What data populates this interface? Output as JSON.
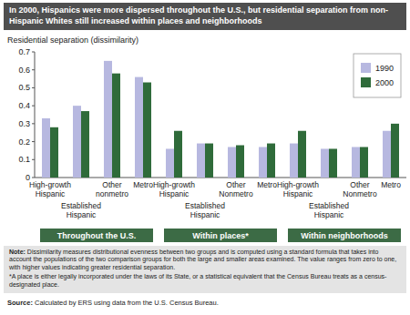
{
  "chart_data": {
    "type": "bar",
    "title": "In 2000, Hispanics were more dispersed throughout the U.S., but residential separation from non-Hispanic Whites still increased within places and neighborhoods",
    "y_label": "Residential separation (dissimilarity)",
    "categories": [
      "High-growth Hispanic",
      "Established Hispanic",
      "Other nonmetro",
      "Metro",
      "High-growth Hispanic",
      "Established Hispanic",
      "Other Nonmetro",
      "Metro",
      "High-growth Hispanic",
      "Established Hispanic",
      "Other Nonmetro",
      "Metro"
    ],
    "groups": [
      "Throughout the U.S.",
      "Within places*",
      "Within neighborhoods"
    ],
    "series": [
      {
        "name": "1990",
        "color": "#b7b8e0",
        "values": [
          0.33,
          0.4,
          0.65,
          0.56,
          0.16,
          0.19,
          0.17,
          0.17,
          0.19,
          0.16,
          0.17,
          0.26
        ]
      },
      {
        "name": "2000",
        "color": "#2f6b3a",
        "values": [
          0.28,
          0.37,
          0.58,
          0.53,
          0.26,
          0.19,
          0.18,
          0.19,
          0.26,
          0.16,
          0.17,
          0.3
        ]
      }
    ],
    "ylim": [
      0,
      0.7
    ],
    "yticks": [
      0,
      0.1,
      0.2,
      0.3,
      0.4,
      0.5,
      0.6,
      0.7
    ],
    "grid": false,
    "legend": "top-right",
    "note": "Note: Dissimilarity measures distributional evenness between two groups and is computed using a standard formula that takes into account the populations of the two comparison groups for both the large and smaller areas examined. The value ranges from zero to one, with higher values indicating greater residential separation.",
    "footnote": "*A place is either legally incorporated under the laws of its State, or a statistical equivalent that the Census Bureau treats as a census-designated place.",
    "source": "Source: Calculated by ERS using data from the U.S. Census Bureau."
  }
}
